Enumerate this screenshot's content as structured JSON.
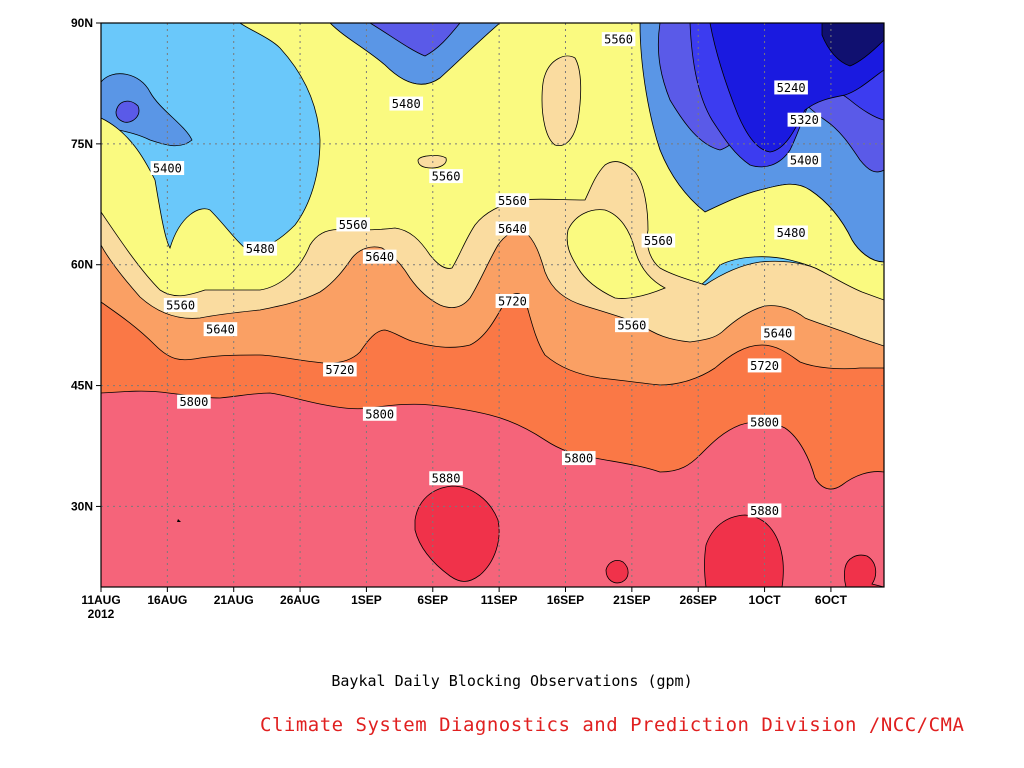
{
  "chart_data": {
    "type": "heatmap",
    "title": "Baykal Daily Blocking Observations (gpm)",
    "credit": "Climate System Diagnostics and Prediction Division /NCC/CMA",
    "x_ticks": [
      "11AUG",
      "16AUG",
      "21AUG",
      "26AUG",
      "1SEP",
      "6SEP",
      "11SEP",
      "16SEP",
      "21SEP",
      "26SEP",
      "1OCT",
      "6OCT"
    ],
    "x_year": "2012",
    "x_range": [
      "2012-08-11",
      "2012-10-09"
    ],
    "y_ticks": [
      "90N",
      "75N",
      "60N",
      "45N",
      "30N"
    ],
    "y_range": [
      20,
      90
    ],
    "contour_levels": [
      5160,
      5240,
      5320,
      5400,
      5480,
      5560,
      5640,
      5720,
      5800,
      5880
    ],
    "fill_colors": {
      "below_5160": "#101070",
      "5160_5240": "#1a1ae0",
      "5240_5320": "#3c3cf0",
      "5320_5400": "#5a5ae8",
      "5400_5480": "#5a96e6",
      "5480_5560": "#6ac8fa",
      "5560_5640": "#fafa80",
      "5640_5720": "#fadca0",
      "5720_5800": "#faa064",
      "5800_5880": "#fa7846",
      "5880_plus": "#f5647a",
      "above_5880": "#f0324a"
    },
    "contour_labels": [
      {
        "text": "5560",
        "date": "2012-09-19",
        "lat": 88
      },
      {
        "text": "5480",
        "date": "2012-09-03",
        "lat": 80
      },
      {
        "text": "5240",
        "date": "2012-10-02",
        "lat": 82
      },
      {
        "text": "5320",
        "date": "2012-10-03",
        "lat": 78
      },
      {
        "text": "5400",
        "date": "2012-08-16",
        "lat": 72
      },
      {
        "text": "5560",
        "date": "2012-09-06",
        "lat": 71
      },
      {
        "text": "5400",
        "date": "2012-10-03",
        "lat": 73
      },
      {
        "text": "5560",
        "date": "2012-09-11",
        "lat": 68
      },
      {
        "text": "5560",
        "date": "2012-08-30",
        "lat": 65
      },
      {
        "text": "5640",
        "date": "2012-09-11",
        "lat": 64.5
      },
      {
        "text": "5560",
        "date": "2012-09-22",
        "lat": 63
      },
      {
        "text": "5480",
        "date": "2012-08-23",
        "lat": 62
      },
      {
        "text": "5480",
        "date": "2012-10-02",
        "lat": 64
      },
      {
        "text": "5640",
        "date": "2012-09-01",
        "lat": 61
      },
      {
        "text": "5720",
        "date": "2012-09-11",
        "lat": 55.5
      },
      {
        "text": "5560",
        "date": "2012-08-17",
        "lat": 55
      },
      {
        "text": "5560",
        "date": "2012-09-20",
        "lat": 52.5
      },
      {
        "text": "5640",
        "date": "2012-08-20",
        "lat": 52
      },
      {
        "text": "5640",
        "date": "2012-10-01",
        "lat": 51.5
      },
      {
        "text": "5720",
        "date": "2012-08-29",
        "lat": 47
      },
      {
        "text": "5720",
        "date": "2012-09-30",
        "lat": 47.5
      },
      {
        "text": "5800",
        "date": "2012-08-18",
        "lat": 43
      },
      {
        "text": "5800",
        "date": "2012-09-01",
        "lat": 41.5
      },
      {
        "text": "5800",
        "date": "2012-09-30",
        "lat": 40.5
      },
      {
        "text": "5800",
        "date": "2012-09-16",
        "lat": 36
      },
      {
        "text": "5880",
        "date": "2012-09-06",
        "lat": 33.5
      },
      {
        "text": "5880",
        "date": "2012-09-30",
        "lat": 29.5
      }
    ]
  }
}
